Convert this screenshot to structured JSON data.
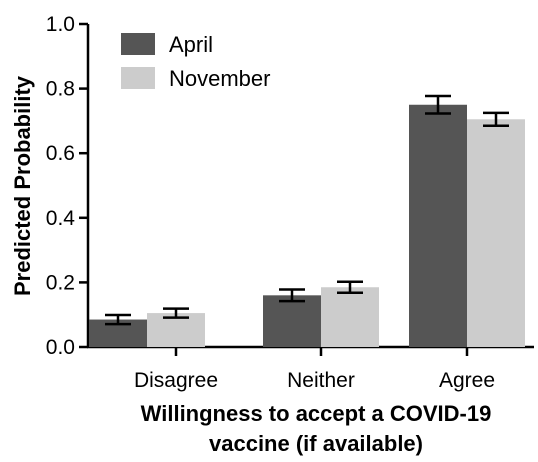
{
  "chart_data": {
    "type": "bar",
    "categories": [
      "Disagree",
      "Neither",
      "Agree"
    ],
    "series": [
      {
        "name": "April",
        "color": "#555555",
        "values": [
          0.085,
          0.16,
          0.75
        ],
        "error": [
          0.014,
          0.018,
          0.027
        ]
      },
      {
        "name": "November",
        "color": "#cccccc",
        "values": [
          0.105,
          0.185,
          0.705
        ],
        "error": [
          0.014,
          0.017,
          0.02
        ]
      }
    ],
    "ylabel": "Predicted Probability",
    "xlabel_lines": [
      "Willingness to accept a COVID-19",
      "vaccine (if available)"
    ],
    "ylim": [
      0,
      1.0
    ],
    "yticks": [
      "0.0",
      "0.2",
      "0.4",
      "0.6",
      "0.8",
      "1.0"
    ],
    "ytick_values": [
      0,
      0.2,
      0.4,
      0.6,
      0.8,
      1.0
    ],
    "legend_position": "top-left",
    "grid": false
  }
}
